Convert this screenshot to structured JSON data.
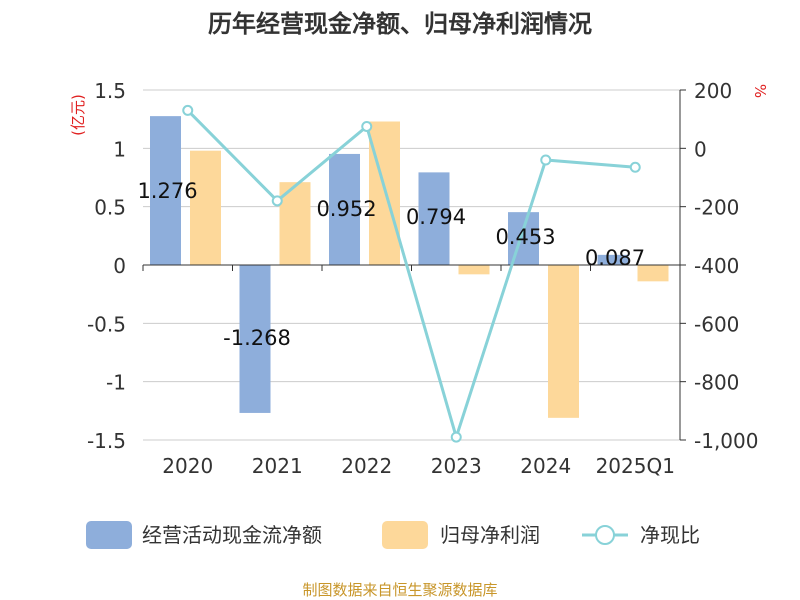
{
  "chart_data": {
    "type": "bar+line",
    "title": "历年经营现金净额、归母净利润情况",
    "left_unit": "(亿元)",
    "right_unit": "%",
    "categories": [
      "2020",
      "2021",
      "2022",
      "2023",
      "2024",
      "2025Q1"
    ],
    "left_axis": {
      "ticks": [
        "1.5",
        "1",
        "0.5",
        "0",
        "-0.5",
        "-1",
        "-1.5"
      ],
      "ylim": [
        -1.5,
        1.5
      ]
    },
    "right_axis": {
      "ticks": [
        "200",
        "0",
        "-200",
        "-400",
        "-600",
        "-800",
        "-1,000"
      ],
      "ylim": [
        -1000,
        200
      ]
    },
    "series": [
      {
        "name": "经营活动现金流净额",
        "kind": "bar",
        "axis": "left",
        "color": "#8eaedb",
        "values": [
          1.276,
          -1.268,
          0.952,
          0.794,
          0.453,
          0.087
        ],
        "labels": [
          "1.276",
          "-1.268",
          "0.952",
          "0.794",
          "0.453",
          "0.087"
        ]
      },
      {
        "name": "归母净利润",
        "kind": "bar",
        "axis": "left",
        "color": "#fdd89a",
        "values": [
          0.98,
          0.71,
          1.23,
          -0.08,
          -1.31,
          -0.14
        ]
      },
      {
        "name": "净现比",
        "kind": "line",
        "axis": "right",
        "color": "#88d2d8",
        "values": [
          130,
          -180,
          75,
          -990,
          -40,
          -65
        ]
      }
    ],
    "source": "制图数据来自恒生聚源数据库"
  }
}
